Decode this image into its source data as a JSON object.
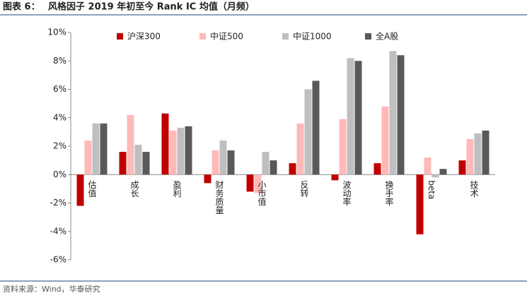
{
  "chart_data": {
    "type": "bar",
    "figure_label": "图表 6：",
    "title": "风格因子 2019 年初至今 Rank IC 均值（月频）",
    "source": "资料来源：Wind，华泰研究",
    "categories": [
      "估值",
      "成长",
      "盈利",
      "财务质量",
      "小市值",
      "反转",
      "波动率",
      "换手率",
      "beta",
      "技术"
    ],
    "series": [
      {
        "name": "沪深300",
        "color": "#c00000",
        "values": [
          -2.2,
          1.6,
          4.3,
          -0.6,
          -1.2,
          0.8,
          -0.4,
          0.8,
          -4.2,
          1.0
        ]
      },
      {
        "name": "中证500",
        "color": "#ffb9b9",
        "values": [
          2.4,
          4.2,
          3.1,
          1.7,
          -1.3,
          3.6,
          3.9,
          4.8,
          1.2,
          2.5
        ]
      },
      {
        "name": "中证1000",
        "color": "#bfbfbf",
        "values": [
          3.6,
          2.1,
          3.3,
          2.4,
          1.6,
          6.0,
          8.2,
          8.7,
          -0.2,
          2.9
        ]
      },
      {
        "name": "全A股",
        "color": "#595959",
        "values": [
          3.6,
          1.6,
          3.4,
          1.7,
          1.0,
          6.6,
          8.0,
          8.4,
          0.4,
          3.1
        ]
      }
    ],
    "ylim": [
      -6,
      10
    ],
    "yticks": [
      {
        "value": -6,
        "label": "-6%"
      },
      {
        "value": -4,
        "label": "-4%"
      },
      {
        "value": -2,
        "label": "-2%"
      },
      {
        "value": 0,
        "label": "0%"
      },
      {
        "value": 2,
        "label": "2%"
      },
      {
        "value": 4,
        "label": "4%"
      },
      {
        "value": 6,
        "label": "6%"
      },
      {
        "value": 8,
        "label": "8%"
      },
      {
        "value": 10,
        "label": "10%"
      }
    ],
    "legend": "top"
  }
}
